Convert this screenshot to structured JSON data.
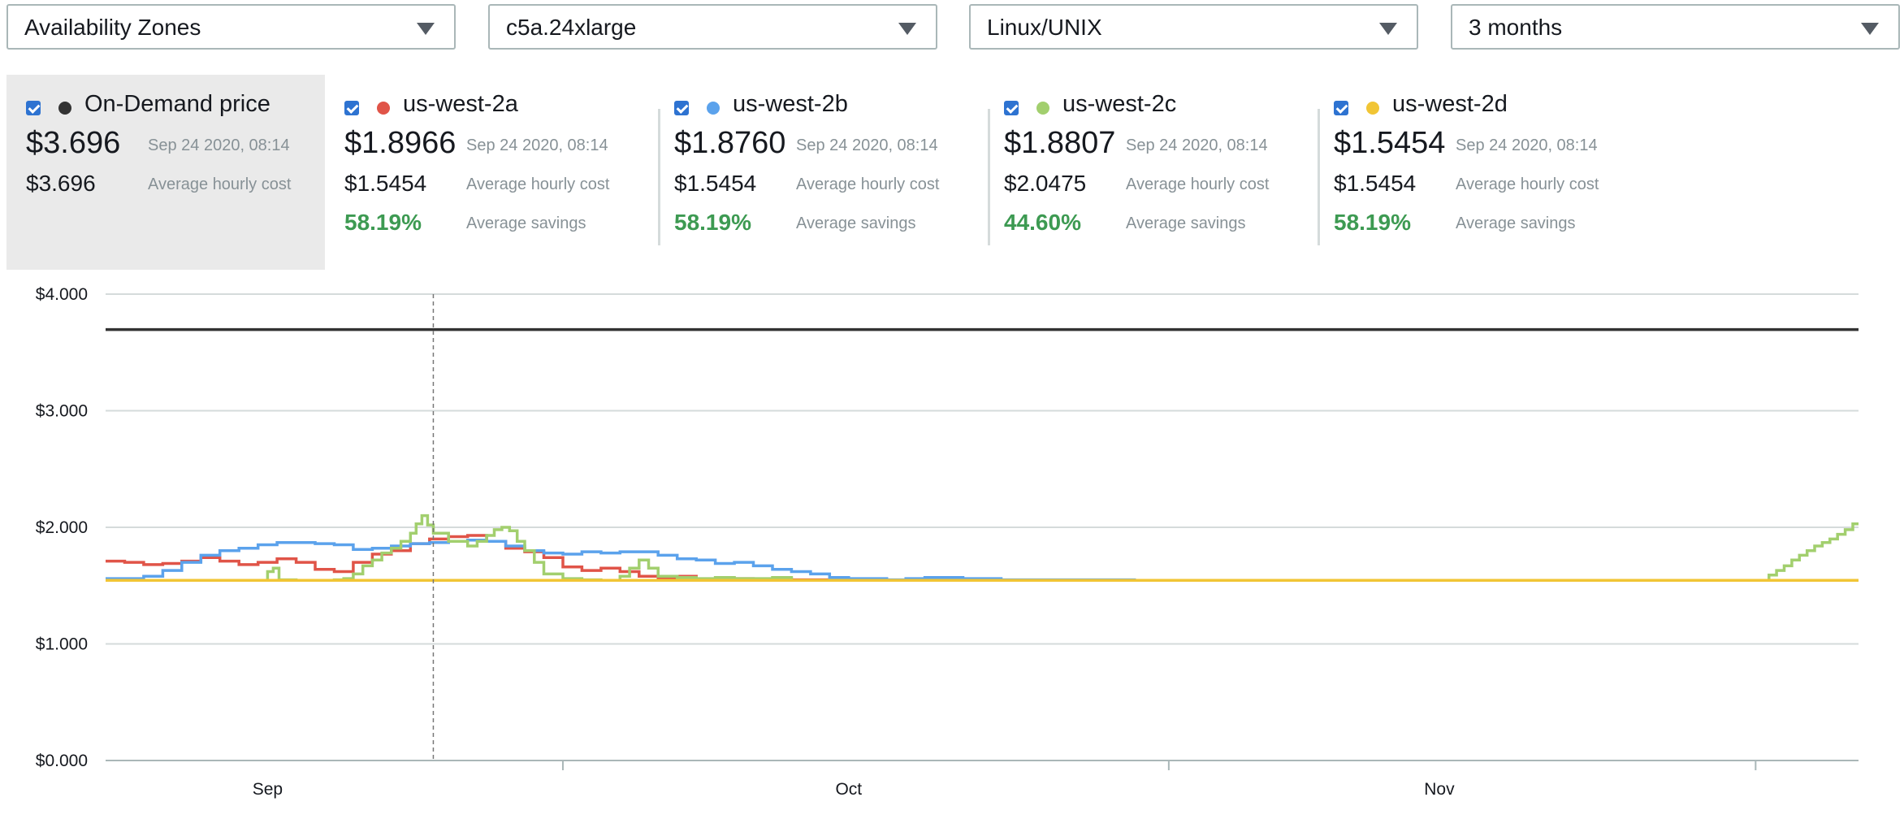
{
  "filters": {
    "region_view": "Availability Zones",
    "instance_type": "c5a.24xlarge",
    "platform": "Linux/UNIX",
    "range": "3 months"
  },
  "legend": [
    {
      "name": "On-Demand price",
      "color": "#333333",
      "checked": true,
      "price": "$3.696",
      "time": "Sep 24 2020, 08:14",
      "avg_cost": "$3.696",
      "avg_cost_label": "Average hourly cost"
    },
    {
      "name": "us-west-2a",
      "color": "#e05448",
      "checked": true,
      "price": "$1.8966",
      "time": "Sep 24 2020, 08:14",
      "avg_cost": "$1.5454",
      "avg_cost_label": "Average hourly cost",
      "savings": "58.19%",
      "savings_label": "Average savings"
    },
    {
      "name": "us-west-2b",
      "color": "#5ba2ec",
      "checked": true,
      "price": "$1.8760",
      "time": "Sep 24 2020, 08:14",
      "avg_cost": "$1.5454",
      "avg_cost_label": "Average hourly cost",
      "savings": "58.19%",
      "savings_label": "Average savings"
    },
    {
      "name": "us-west-2c",
      "color": "#a2cf6e",
      "checked": true,
      "price": "$1.8807",
      "time": "Sep 24 2020, 08:14",
      "avg_cost": "$2.0475",
      "avg_cost_label": "Average hourly cost",
      "savings": "44.60%",
      "savings_label": "Average savings"
    },
    {
      "name": "us-west-2d",
      "color": "#f1c535",
      "checked": true,
      "price": "$1.5454",
      "time": "Sep 24 2020, 08:14",
      "avg_cost": "$1.5454",
      "avg_cost_label": "Average hourly cost",
      "savings": "58.19%",
      "savings_label": "Average savings"
    }
  ],
  "colors": {
    "savings": "#3d9a52",
    "gridline": "#d5dbdb",
    "checkbox": "#2e73d1"
  },
  "chart_data": {
    "type": "line",
    "step": true,
    "x_unit": "day index (day 0 = Aug 25)",
    "xlim": [
      0,
      92
    ],
    "ylim": [
      0,
      4
    ],
    "yticks": [
      "$4.000",
      "$3.000",
      "$2.000",
      "$1.000",
      "$0.000"
    ],
    "xlabels": [
      {
        "label": "Sep",
        "at": 8.5
      },
      {
        "label": "Oct",
        "at": 39
      },
      {
        "label": "Nov",
        "at": 70
      }
    ],
    "xtick_marks": [
      24,
      55.8,
      86.6
    ],
    "crosshair_x": 17.2,
    "grid": true,
    "series": [
      {
        "name": "On-Demand price",
        "color": "#333333",
        "x": [
          0,
          92
        ],
        "values": [
          3.696,
          3.696
        ]
      },
      {
        "name": "us-west-2a",
        "color": "#e05448",
        "x": [
          0,
          1,
          2,
          3,
          4,
          5,
          6,
          7,
          8,
          9,
          10,
          11,
          12,
          13,
          14,
          15,
          16,
          17,
          18,
          19,
          20,
          21,
          22,
          23,
          24,
          25,
          26,
          27,
          28,
          29,
          30,
          31,
          32,
          33,
          34,
          35,
          36,
          37,
          38,
          92
        ],
        "values": [
          1.71,
          1.7,
          1.68,
          1.69,
          1.71,
          1.74,
          1.71,
          1.68,
          1.7,
          1.73,
          1.7,
          1.64,
          1.62,
          1.7,
          1.77,
          1.8,
          1.86,
          1.9,
          1.92,
          1.93,
          1.88,
          1.82,
          1.79,
          1.74,
          1.66,
          1.63,
          1.65,
          1.62,
          1.58,
          1.56,
          1.58,
          1.55,
          1.55,
          1.56,
          1.55,
          1.56,
          1.55,
          1.55,
          1.5454,
          1.5454
        ]
      },
      {
        "name": "us-west-2b",
        "color": "#5ba2ec",
        "x": [
          0,
          1,
          2,
          3,
          4,
          5,
          6,
          7,
          8,
          9,
          10,
          11,
          12,
          13,
          14,
          15,
          16,
          17,
          18,
          19,
          20,
          21,
          22,
          23,
          24,
          25,
          26,
          27,
          28,
          29,
          30,
          31,
          32,
          33,
          34,
          35,
          36,
          37,
          38,
          39,
          40,
          41,
          42,
          43,
          44,
          45,
          46,
          47,
          48,
          50,
          52,
          54,
          56,
          92
        ],
        "values": [
          1.56,
          1.56,
          1.58,
          1.63,
          1.7,
          1.76,
          1.8,
          1.82,
          1.85,
          1.87,
          1.87,
          1.86,
          1.85,
          1.81,
          1.82,
          1.84,
          1.86,
          1.87,
          1.88,
          1.89,
          1.88,
          1.84,
          1.8,
          1.78,
          1.77,
          1.79,
          1.78,
          1.79,
          1.79,
          1.76,
          1.73,
          1.72,
          1.69,
          1.7,
          1.67,
          1.64,
          1.62,
          1.6,
          1.57,
          1.56,
          1.56,
          1.55,
          1.56,
          1.57,
          1.57,
          1.56,
          1.56,
          1.55,
          1.55,
          1.55,
          1.55,
          1.5454,
          1.5454,
          1.5454
        ]
      },
      {
        "name": "us-west-2c",
        "color": "#a2cf6e",
        "x": [
          0,
          8.2,
          8.5,
          8.8,
          9.1,
          10,
          11,
          11.5,
          12,
          12.5,
          13,
          13.5,
          14,
          14.5,
          15,
          15.5,
          16,
          16.3,
          16.6,
          16.9,
          17.2,
          18,
          19,
          19.5,
          20,
          20.4,
          20.8,
          21.2,
          21.6,
          22,
          22.5,
          23,
          24,
          25,
          26,
          27,
          27.5,
          28,
          28.5,
          29,
          30,
          31,
          32,
          33,
          34,
          35,
          36,
          86.9,
          87.3,
          87.7,
          88.1,
          88.5,
          88.9,
          89.3,
          89.7,
          90.1,
          90.5,
          90.9,
          91.3,
          91.7,
          92
        ],
        "values": [
          1.5454,
          1.5454,
          1.62,
          1.65,
          1.55,
          1.5454,
          1.5454,
          1.5454,
          1.55,
          1.56,
          1.6,
          1.67,
          1.72,
          1.78,
          1.82,
          1.88,
          1.95,
          2.03,
          2.1,
          2.02,
          1.95,
          1.88,
          1.84,
          1.88,
          1.93,
          1.98,
          2.0,
          1.97,
          1.88,
          1.8,
          1.7,
          1.6,
          1.56,
          1.55,
          1.5454,
          1.58,
          1.65,
          1.72,
          1.65,
          1.58,
          1.57,
          1.56,
          1.57,
          1.56,
          1.56,
          1.57,
          1.5454,
          1.5454,
          1.59,
          1.63,
          1.67,
          1.72,
          1.76,
          1.8,
          1.84,
          1.87,
          1.9,
          1.94,
          1.98,
          2.03,
          2.03
        ]
      },
      {
        "name": "us-west-2d",
        "color": "#f1c535",
        "x": [
          0,
          92
        ],
        "values": [
          1.5454,
          1.5454
        ]
      }
    ]
  }
}
